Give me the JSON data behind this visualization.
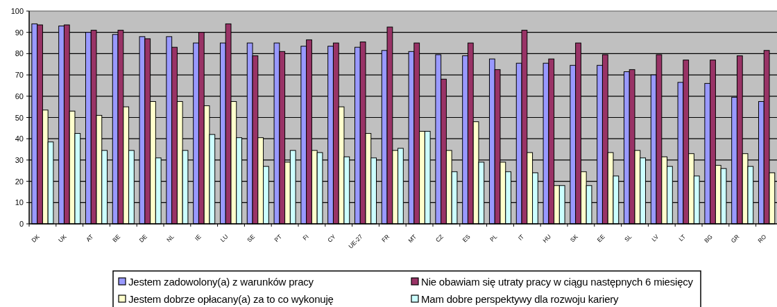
{
  "chart_data": {
    "type": "bar",
    "categories": [
      "DK",
      "UK",
      "AT",
      "BE",
      "DE",
      "NL",
      "IE",
      "LU",
      "SE",
      "PT",
      "FI",
      "CY",
      "UE-27",
      "FR",
      "MT",
      "CZ",
      "ES",
      "PL",
      "IT",
      "HU",
      "SK",
      "EE",
      "SL",
      "LV",
      "LT",
      "BG",
      "GR",
      "RO"
    ],
    "series": [
      {
        "name": "Jestem zadowolony(a) z warunków pracy",
        "color": "#9999ff",
        "values": [
          94,
          93,
          90,
          89,
          88,
          88,
          85,
          85,
          85,
          85,
          83.5,
          83.5,
          83,
          81.5,
          81,
          79.5,
          79,
          77.5,
          75.5,
          75.5,
          74.5,
          74.5,
          71.5,
          70,
          66.5,
          66,
          59.5,
          57.5
        ]
      },
      {
        "name": "Nie obawiam się utraty pracy w ciągu następnych 6 miesięcy",
        "color": "#993366",
        "values": [
          93.5,
          93.5,
          91,
          91,
          87,
          83,
          90,
          94,
          79,
          81,
          86.5,
          85,
          85.5,
          92.5,
          85,
          68,
          85,
          72.5,
          91,
          77.5,
          85,
          79.5,
          72.5,
          79.5,
          77,
          77,
          79,
          81.5
        ]
      },
      {
        "name": "Jestem dobrze opłacany(a) za to co wykonuję",
        "color": "#ffffcc",
        "values": [
          53.5,
          53,
          51,
          55,
          57.5,
          57.5,
          55.5,
          57.5,
          40.5,
          29,
          34.5,
          55,
          42.5,
          34.5,
          43.5,
          34.5,
          48,
          29,
          33.5,
          18,
          24.5,
          33.5,
          34.5,
          31.5,
          33,
          27.5,
          33,
          24
        ]
      },
      {
        "name": "Mam dobre perspektywy dla rozwoju kariery",
        "color": "#ccffff",
        "values": [
          38.5,
          42.5,
          34.5,
          34.5,
          31,
          34.5,
          42,
          40.5,
          27,
          34.5,
          33.5,
          31.5,
          31,
          35.5,
          43.5,
          24.5,
          29,
          24.5,
          24,
          18,
          18,
          22.5,
          31,
          27,
          22.5,
          26,
          27,
          null
        ]
      }
    ],
    "ylim": [
      0,
      100
    ],
    "yticks": [
      0,
      10,
      20,
      30,
      40,
      50,
      60,
      70,
      80,
      90,
      100
    ],
    "grid": "y",
    "legend": "bottom"
  }
}
